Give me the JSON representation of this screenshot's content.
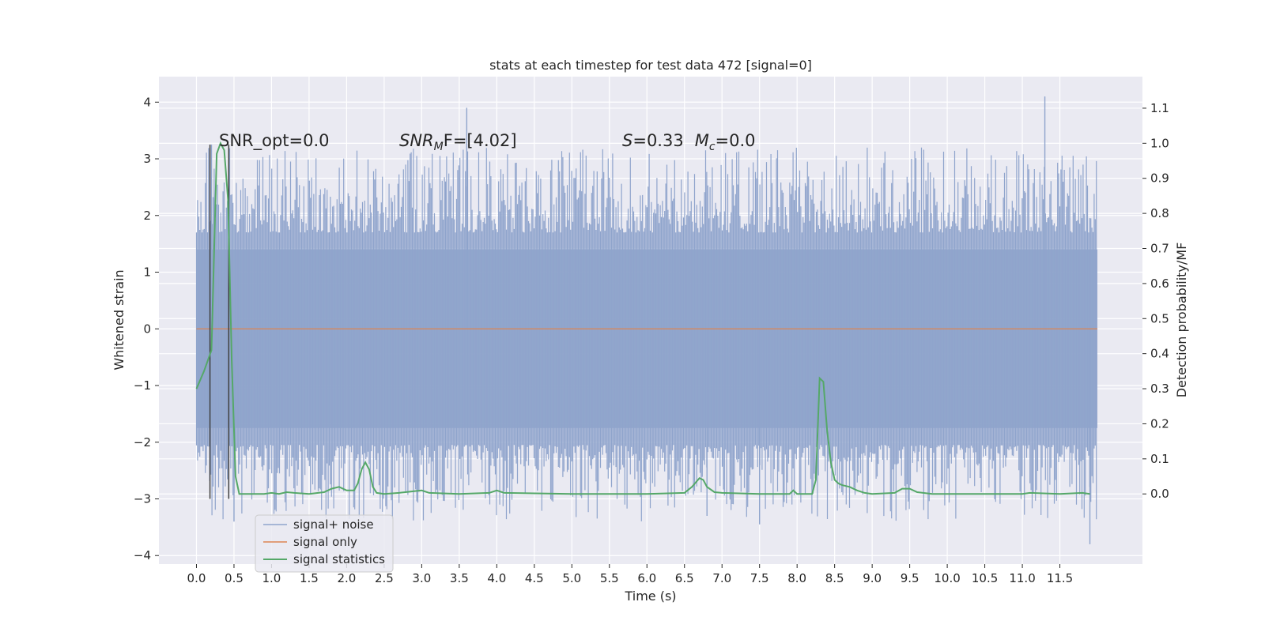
{
  "chart_data": {
    "type": "line",
    "title": "stats at each timestep for test data 472 [signal=0]",
    "xlabel": "Time (s)",
    "ylabel": "Whitened strain",
    "ylabel_right": "Detection probability/MF",
    "xlim": [
      -0.5,
      12.6
    ],
    "ylim": [
      -4.15,
      4.45
    ],
    "ylim_right": [
      -0.2,
      1.19
    ],
    "x_ticks": [
      "0.0",
      "0.5",
      "1.0",
      "1.5",
      "2.0",
      "2.5",
      "3.0",
      "3.5",
      "4.0",
      "4.5",
      "5.0",
      "5.5",
      "6.0",
      "6.5",
      "7.0",
      "7.5",
      "8.0",
      "8.5",
      "9.0",
      "9.5",
      "10.0",
      "10.5",
      "11.0",
      "11.5"
    ],
    "y_ticks_left": [
      "4",
      "3",
      "2",
      "1",
      "0",
      "−1",
      "−2",
      "−3",
      "−4"
    ],
    "y_ticks_right": [
      "1.1",
      "1.0",
      "0.9",
      "0.8",
      "0.7",
      "0.6",
      "0.5",
      "0.4",
      "0.3",
      "0.2",
      "0.1",
      "0.0"
    ],
    "grid": true,
    "legend_position": "lower-left",
    "colors": {
      "background": "#eaeaf2",
      "noise": "#8fa4cc",
      "signal": "#dd8452",
      "stats": "#55a868",
      "vlines": "#404040"
    },
    "series": [
      {
        "name": "signal+ noise",
        "role": "noise",
        "x_range": [
          0.0,
          12.0
        ],
        "band": [
          -1.75,
          1.4
        ],
        "spike_envelope": [
          -3.8,
          4.1
        ]
      },
      {
        "name": "signal only",
        "role": "signal",
        "x": [
          0.0,
          12.0
        ],
        "y": [
          0.0,
          0.0
        ]
      },
      {
        "name": "signal statistics",
        "role": "stats",
        "axis": "right",
        "x": [
          0.0,
          0.1,
          0.2,
          0.27,
          0.32,
          0.37,
          0.42,
          0.47,
          0.52,
          0.57,
          0.62,
          0.7,
          0.9,
          1.0,
          1.1,
          1.2,
          1.3,
          1.5,
          1.7,
          1.8,
          1.9,
          2.0,
          2.1,
          2.15,
          2.2,
          2.25,
          2.3,
          2.35,
          2.4,
          2.5,
          2.7,
          2.9,
          3.0,
          3.1,
          3.5,
          3.9,
          4.0,
          4.1,
          5.0,
          6.0,
          6.5,
          6.6,
          6.7,
          6.75,
          6.8,
          6.9,
          7.0,
          7.5,
          7.9,
          7.95,
          8.0,
          8.2,
          8.25,
          8.3,
          8.35,
          8.4,
          8.45,
          8.5,
          8.55,
          8.6,
          8.7,
          8.8,
          8.9,
          9.0,
          9.3,
          9.4,
          9.5,
          9.6,
          9.8,
          10.0,
          10.5,
          11.0,
          11.1,
          11.5,
          11.8,
          11.9
        ],
        "y": [
          0.3,
          0.35,
          0.41,
          0.97,
          1.0,
          0.98,
          0.84,
          0.38,
          0.05,
          0.0,
          0.0,
          0.0,
          0.0,
          0.003,
          0.0,
          0.005,
          0.003,
          0.0,
          0.005,
          0.015,
          0.02,
          0.01,
          0.01,
          0.03,
          0.07,
          0.09,
          0.07,
          0.02,
          0.003,
          0.0,
          0.003,
          0.008,
          0.01,
          0.003,
          0.0,
          0.003,
          0.01,
          0.003,
          0.0,
          0.0,
          0.003,
          0.02,
          0.045,
          0.04,
          0.02,
          0.005,
          0.003,
          0.0,
          0.0,
          0.01,
          0.0,
          0.0,
          0.04,
          0.33,
          0.32,
          0.18,
          0.09,
          0.04,
          0.03,
          0.025,
          0.02,
          0.01,
          0.003,
          0.0,
          0.003,
          0.015,
          0.015,
          0.005,
          0.0,
          0.0,
          0.0,
          0.0,
          0.003,
          0.0,
          0.003,
          0.0
        ]
      }
    ],
    "vlines": {
      "x": [
        0.18,
        0.43
      ],
      "y_range": [
        -3.0,
        3.25
      ]
    },
    "annotations": [
      {
        "id": "snr_opt",
        "text": "SNR_opt=0.0"
      },
      {
        "id": "snr_mf",
        "text": "SNR_MF=[4.02]",
        "sym": "SNR",
        "sub": "M",
        "rest": "F=[4.02]"
      },
      {
        "id": "s_mc",
        "text": "S=0.33   M_c=0.0",
        "s_sym": "S",
        "s_rest": "=0.33",
        "m_sym": "M",
        "m_sub": "c",
        "m_rest": "=0.0"
      }
    ]
  }
}
